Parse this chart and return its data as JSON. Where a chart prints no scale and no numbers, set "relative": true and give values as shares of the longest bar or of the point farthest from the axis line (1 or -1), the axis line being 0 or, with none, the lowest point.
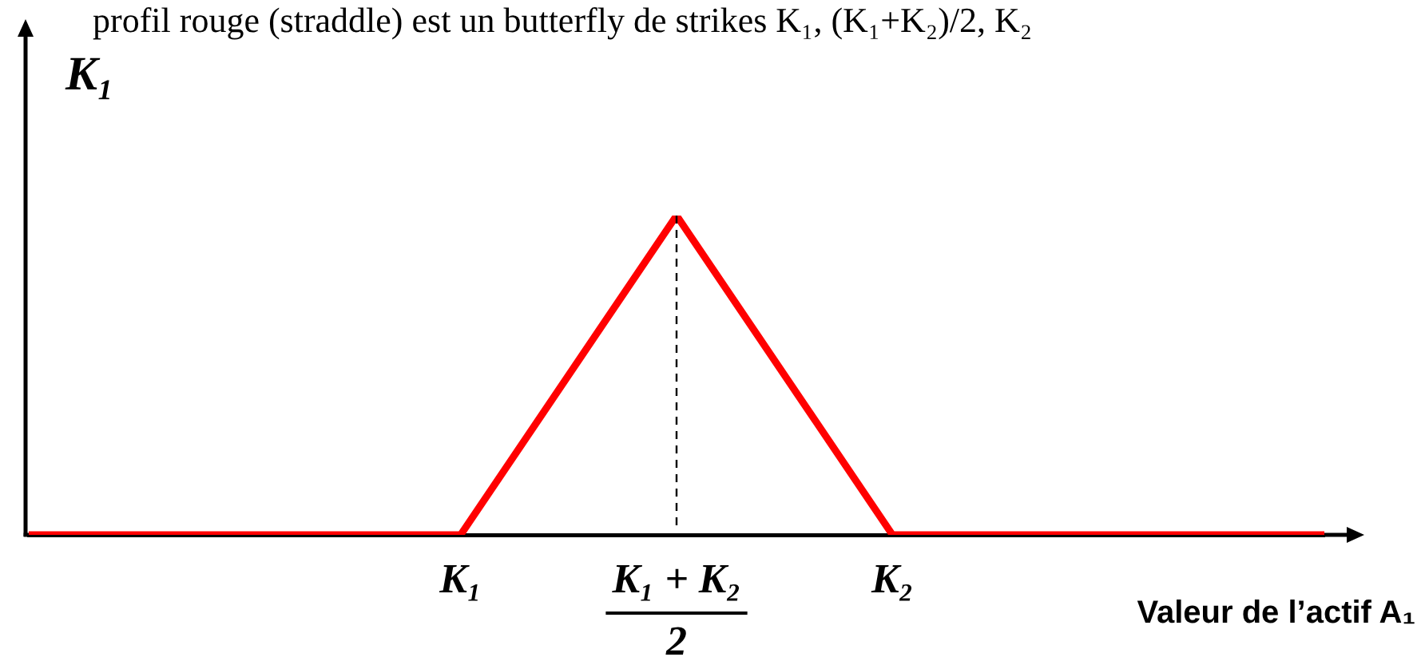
{
  "chart_data": {
    "type": "line",
    "title": "profil rouge (straddle) est un butterfly de strikes K₁, (K₁+K₂)/2, K₂",
    "ylabel": "K₁",
    "xlabel": "Valeur de l’actif A₁",
    "categories": [
      null,
      null,
      "K₁",
      "K₁ + K₂\n2",
      "K₂",
      null,
      null
    ],
    "values": [
      0,
      0,
      0,
      1,
      0,
      0,
      0
    ],
    "color": "#ff0000",
    "relative": true,
    "marker": "none",
    "ref_lines": [
      {
        "axis": "x",
        "value": "K₁ + K₂\n2",
        "color": "#000000",
        "line_style": "dashed"
      }
    ]
  }
}
